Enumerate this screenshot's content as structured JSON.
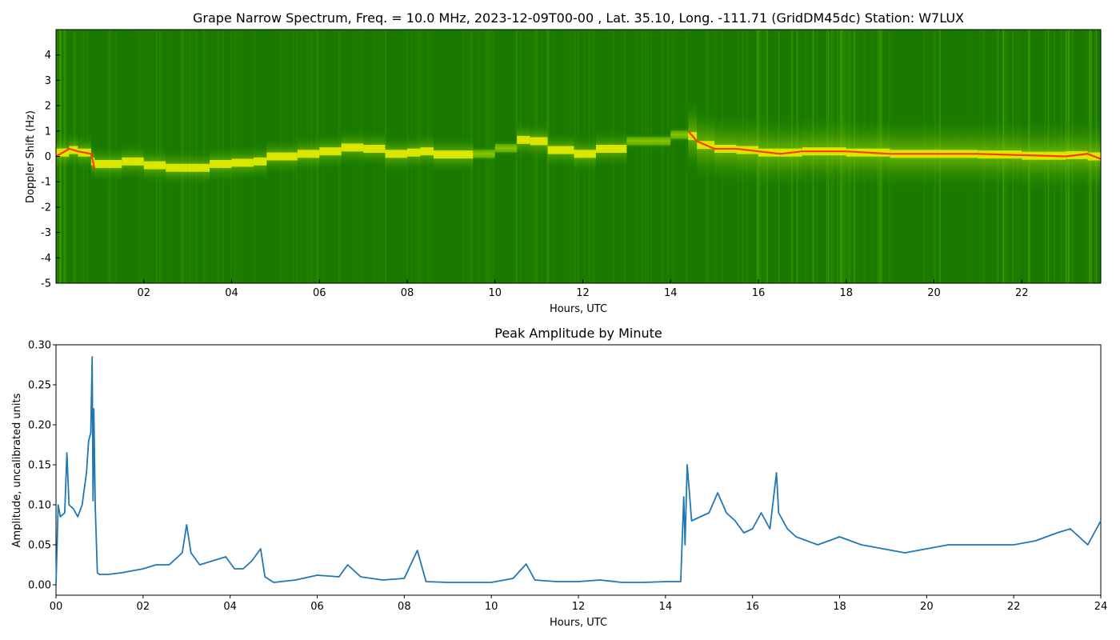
{
  "figure": {
    "top_title": "Grape Narrow Spectrum, Freq. = 10.0 MHz, 2023-12-09T00-00 , Lat.  35.10, Long. -111.71 (GridDM45dc) Station: W7LUX",
    "bottom_title": "Peak Amplitude by Minute"
  },
  "chart_data": [
    {
      "type": "heatmap",
      "title": "Grape Narrow Spectrum, Freq. = 10.0 MHz, 2023-12-09T00-00 , Lat.  35.10, Long. -111.71 (GridDM45dc) Station: W7LUX",
      "xlabel": "Hours, UTC",
      "ylabel": "Doppler Shift (Hz)",
      "xlim": [
        0,
        23.8
      ],
      "ylim": [
        -5,
        5
      ],
      "x_ticks": [
        "02",
        "04",
        "06",
        "08",
        "10",
        "12",
        "14",
        "16",
        "18",
        "20",
        "22"
      ],
      "x_tick_values": [
        2,
        4,
        6,
        8,
        10,
        12,
        14,
        16,
        18,
        20,
        22
      ],
      "y_ticks": [
        "-5",
        "-4",
        "-3",
        "-2",
        "-1",
        "0",
        "1",
        "2",
        "3",
        "4"
      ],
      "y_tick_values": [
        -5,
        -4,
        -3,
        -2,
        -1,
        0,
        1,
        2,
        3,
        4
      ],
      "colors": {
        "background": "#1a7a00",
        "mid": "#7ec800",
        "high": "#ffff00",
        "peak": "#ff3300"
      },
      "doppler_trace": {
        "x": [
          0.0,
          0.3,
          0.5,
          0.8,
          0.88,
          1.5,
          2.0,
          2.5,
          3.0,
          3.5,
          4.0,
          4.5,
          4.8,
          5.5,
          6.0,
          6.5,
          7.0,
          7.5,
          8.0,
          8.3,
          8.6,
          9.5,
          10.0,
          10.5,
          10.8,
          11.2,
          11.8,
          12.3,
          13.0,
          14.0,
          14.4,
          14.6,
          15.0,
          15.5,
          16.0,
          16.5,
          17.0,
          18.0,
          19.0,
          20.0,
          21.0,
          22.0,
          23.0,
          23.5,
          23.8
        ],
        "y": [
          0.0,
          0.3,
          0.2,
          0.1,
          -0.5,
          -0.1,
          -0.3,
          -0.4,
          -0.5,
          -0.4,
          -0.2,
          -0.3,
          -0.1,
          0.1,
          0.1,
          0.3,
          0.4,
          0.2,
          0.0,
          0.3,
          0.1,
          0.05,
          0.15,
          0.5,
          0.8,
          0.4,
          0.1,
          0.1,
          0.5,
          0.7,
          1.0,
          0.6,
          0.3,
          0.3,
          0.2,
          0.1,
          0.2,
          0.2,
          0.1,
          0.1,
          0.1,
          0.05,
          0.0,
          0.1,
          -0.1
        ]
      }
    },
    {
      "type": "line",
      "title": "Peak Amplitude by Minute",
      "xlabel": "Hours, UTC",
      "ylabel": "Amplitude, uncalibrated units",
      "xlim": [
        0,
        24
      ],
      "ylim": [
        -0.013,
        0.3
      ],
      "x_ticks": [
        "00",
        "02",
        "04",
        "06",
        "08",
        "10",
        "12",
        "14",
        "16",
        "18",
        "20",
        "22",
        "24"
      ],
      "x_tick_values": [
        0,
        2,
        4,
        6,
        8,
        10,
        12,
        14,
        16,
        18,
        20,
        22,
        24
      ],
      "y_ticks": [
        "0.00",
        "0.05",
        "0.10",
        "0.15",
        "0.20",
        "0.25",
        "0.30"
      ],
      "y_tick_values": [
        0,
        0.05,
        0.1,
        0.15,
        0.2,
        0.25,
        0.3
      ],
      "line_color": "#1f77b4",
      "series": [
        {
          "x": [
            0.0,
            0.05,
            0.1,
            0.2,
            0.25,
            0.3,
            0.4,
            0.5,
            0.6,
            0.7,
            0.75,
            0.8,
            0.83,
            0.85,
            0.87,
            0.9,
            0.95,
            1.0,
            1.2,
            1.5,
            2.0,
            2.3,
            2.6,
            2.9,
            3.0,
            3.1,
            3.3,
            3.6,
            3.9,
            4.1,
            4.3,
            4.5,
            4.7,
            4.8,
            5.0,
            5.5,
            6.0,
            6.5,
            6.7,
            7.0,
            7.5,
            8.0,
            8.3,
            8.5,
            9.0,
            9.5,
            10.0,
            10.5,
            10.8,
            11.0,
            11.5,
            12.0,
            12.5,
            13.0,
            13.5,
            14.0,
            14.35,
            14.42,
            14.45,
            14.5,
            14.6,
            14.8,
            15.0,
            15.2,
            15.4,
            15.6,
            15.8,
            16.0,
            16.2,
            16.4,
            16.55,
            16.6,
            16.8,
            17.0,
            17.5,
            18.0,
            18.5,
            19.0,
            19.5,
            20.0,
            20.5,
            21.0,
            21.5,
            22.0,
            22.5,
            23.0,
            23.3,
            23.5,
            23.7,
            24.0
          ],
          "y": [
            0.0,
            0.1,
            0.085,
            0.09,
            0.165,
            0.1,
            0.095,
            0.085,
            0.1,
            0.14,
            0.18,
            0.19,
            0.285,
            0.105,
            0.22,
            0.1,
            0.015,
            0.013,
            0.013,
            0.015,
            0.02,
            0.025,
            0.025,
            0.04,
            0.075,
            0.04,
            0.025,
            0.03,
            0.035,
            0.02,
            0.02,
            0.03,
            0.045,
            0.01,
            0.003,
            0.006,
            0.012,
            0.01,
            0.025,
            0.01,
            0.006,
            0.008,
            0.043,
            0.004,
            0.003,
            0.003,
            0.003,
            0.008,
            0.026,
            0.006,
            0.004,
            0.004,
            0.006,
            0.003,
            0.003,
            0.004,
            0.004,
            0.11,
            0.05,
            0.15,
            0.08,
            0.085,
            0.09,
            0.115,
            0.09,
            0.08,
            0.065,
            0.07,
            0.09,
            0.07,
            0.14,
            0.09,
            0.07,
            0.06,
            0.05,
            0.06,
            0.05,
            0.045,
            0.04,
            0.045,
            0.05,
            0.05,
            0.05,
            0.05,
            0.055,
            0.065,
            0.07,
            0.06,
            0.05,
            0.08
          ]
        }
      ]
    }
  ]
}
